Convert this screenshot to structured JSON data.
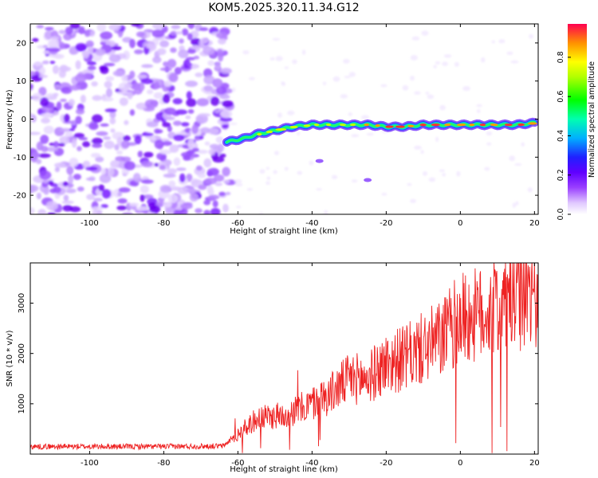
{
  "chart_data": [
    {
      "type": "heatmap",
      "title": "KOM5.2025.320.11.34.G12",
      "xlabel": "Height of straight line (km)",
      "ylabel": "Frequency (Hz)",
      "xlim": [
        -116,
        21
      ],
      "ylim": [
        -25,
        25
      ],
      "xticks": [
        -100,
        -80,
        -60,
        -40,
        -20,
        0,
        20
      ],
      "yticks": [
        20,
        10,
        0,
        -10,
        -20
      ],
      "noise_region_x": [
        -116,
        -62
      ],
      "signal_track": {
        "name": "Doppler trace",
        "x": [
          -63,
          -58,
          -55,
          -50,
          -45,
          -40,
          -35,
          -30,
          -25,
          -20,
          -15,
          -10,
          -5,
          0,
          5,
          10,
          15,
          20
        ],
        "y": [
          -6,
          -5,
          -4,
          -3,
          -2,
          -1.5,
          -1.5,
          -1.5,
          -1.5,
          -2,
          -2,
          -1.5,
          -1.5,
          -1.5,
          -1.5,
          -1.5,
          -1.5,
          -1
        ]
      },
      "isolated_blobs": [
        {
          "x": -38,
          "y": -11
        },
        {
          "x": -25,
          "y": -16
        }
      ],
      "colorbar": {
        "label": "Normalized spectral amplitude",
        "ticks": [
          "0.0",
          "0.2",
          "0.4",
          "0.6",
          "0.8"
        ],
        "range": [
          0,
          0.97
        ],
        "colors": [
          "#ffffff",
          "#c080ff",
          "#7000ff",
          "#2020ff",
          "#00c0ff",
          "#00ffa0",
          "#00ff00",
          "#ffff00",
          "#ff8000",
          "#ff0040"
        ]
      }
    },
    {
      "type": "line",
      "xlabel": "Height of straight line (km)",
      "ylabel": "SNR (10 * v/v)",
      "xlim": [
        -116,
        21
      ],
      "ylim": [
        0,
        3800
      ],
      "xticks": [
        -100,
        -80,
        -60,
        -40,
        -20,
        0,
        20
      ],
      "yticks": [
        1000,
        2000,
        3000
      ],
      "line_color": "#ee2222",
      "series": [
        {
          "name": "SNR",
          "x": [
            -116,
            -100,
            -80,
            -64,
            -60,
            -55,
            -50,
            -45,
            -40,
            -35,
            -30,
            -25,
            -20,
            -15,
            -10,
            -5,
            0,
            5,
            10,
            15,
            20,
            21
          ],
          "y": [
            150,
            150,
            150,
            160,
            400,
            700,
            750,
            850,
            1000,
            1200,
            1500,
            1500,
            1800,
            1900,
            2100,
            2300,
            2700,
            2750,
            2950,
            3100,
            3200,
            3300
          ]
        }
      ]
    }
  ]
}
